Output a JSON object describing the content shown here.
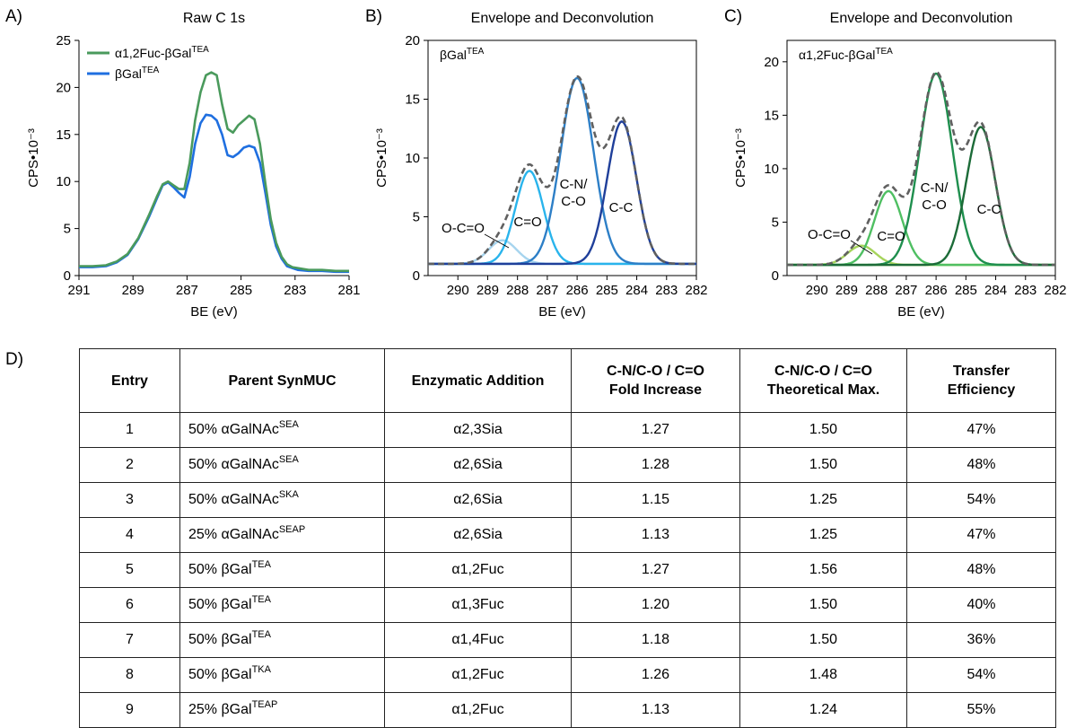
{
  "panels": {
    "a": {
      "letter": "A)"
    },
    "b": {
      "letter": "B)",
      "inset": {
        "base": "βGal",
        "sup": "TEA"
      }
    },
    "c": {
      "letter": "C)",
      "inset": {
        "base": "α1,2Fuc-βGal",
        "sup": "TEA"
      }
    },
    "d": {
      "letter": "D)"
    }
  },
  "colors": {
    "raw_fuc": "#4a9a5c",
    "raw_gal": "#1f6fe0",
    "b_components": [
      "#a6d4ee",
      "#29b4ec",
      "#2d7fc7",
      "#1f3f9a"
    ],
    "b_baseline": "#7ac6f0",
    "c_components": [
      "#a6d45c",
      "#4fbf62",
      "#1f8f4e",
      "#1c6b38"
    ],
    "c_baseline": "#8cc84b",
    "envelope": "#606060"
  },
  "chart_data": [
    {
      "type": "line",
      "title": "Raw C 1s",
      "xlabel": "BE (eV)",
      "ylabel": "CPS•10⁻³",
      "xlim": [
        291,
        281
      ],
      "ylim": [
        0,
        25
      ],
      "xticks": [
        "291",
        "289",
        "287",
        "285",
        "283",
        "281"
      ],
      "yticks": [
        "0",
        "5",
        "10",
        "15",
        "20",
        "25"
      ],
      "legend_position": "top-left",
      "series": [
        {
          "name": "α1,2Fuc-βGal",
          "name_sup": "TEA",
          "x": [
            291,
            290.5,
            290,
            289.6,
            289.2,
            288.8,
            288.4,
            288.1,
            287.9,
            287.7,
            287.5,
            287.3,
            287.1,
            286.9,
            286.7,
            286.5,
            286.3,
            286.1,
            285.9,
            285.7,
            285.5,
            285.3,
            285.1,
            284.9,
            284.7,
            284.5,
            284.3,
            284.1,
            283.9,
            283.7,
            283.5,
            283.3,
            283.1,
            282.9,
            282.5,
            282,
            281.5,
            281
          ],
          "y": [
            1.0,
            1.0,
            1.1,
            1.5,
            2.3,
            4.0,
            6.5,
            8.5,
            9.7,
            10.0,
            9.6,
            9.2,
            9.2,
            12.0,
            16.5,
            19.5,
            21.3,
            21.6,
            21.3,
            18.2,
            15.6,
            15.2,
            16.0,
            16.5,
            17.0,
            16.6,
            14.0,
            9.8,
            6.0,
            3.5,
            2.0,
            1.2,
            0.9,
            0.8,
            0.6,
            0.6,
            0.5,
            0.5
          ]
        },
        {
          "name": "βGal",
          "name_sup": "TEA",
          "x": [
            291,
            290.5,
            290,
            289.6,
            289.2,
            288.8,
            288.4,
            288.1,
            287.9,
            287.7,
            287.5,
            287.3,
            287.1,
            286.9,
            286.7,
            286.5,
            286.3,
            286.1,
            285.9,
            285.7,
            285.5,
            285.3,
            285.1,
            284.9,
            284.7,
            284.5,
            284.3,
            284.1,
            283.9,
            283.7,
            283.5,
            283.3,
            283.1,
            282.9,
            282.5,
            282,
            281.5,
            281
          ],
          "y": [
            0.9,
            0.9,
            1.0,
            1.4,
            2.2,
            3.9,
            6.3,
            8.3,
            9.6,
            9.9,
            9.4,
            8.8,
            8.3,
            10.5,
            14.0,
            16.2,
            17.1,
            17.0,
            16.5,
            15.0,
            12.8,
            12.6,
            13.0,
            13.6,
            13.8,
            13.6,
            12.0,
            8.8,
            5.4,
            3.1,
            1.8,
            1.0,
            0.8,
            0.6,
            0.5,
            0.5,
            0.4,
            0.4
          ]
        }
      ]
    },
    {
      "type": "line",
      "title": "Envelope and Deconvolution",
      "xlabel": "BE (eV)",
      "ylabel": "CPS•10⁻³",
      "xlim": [
        291,
        282
      ],
      "ylim": [
        0,
        20
      ],
      "xticks": [
        "290",
        "289",
        "288",
        "287",
        "286",
        "285",
        "284",
        "283",
        "282"
      ],
      "yticks": [
        "0",
        "5",
        "10",
        "15",
        "20"
      ],
      "baseline": 1.0,
      "components": [
        {
          "label": "O-C=O",
          "center": 288.5,
          "height": 2.0,
          "fwhm": 1.1
        },
        {
          "label": "C=O",
          "center": 287.6,
          "height": 7.9,
          "fwhm": 1.1
        },
        {
          "label": "C-N/ C-O",
          "center": 286.0,
          "height": 15.8,
          "fwhm": 1.3
        },
        {
          "label": "C-C",
          "center": 284.5,
          "height": 12.1,
          "fwhm": 1.15
        }
      ]
    },
    {
      "type": "line",
      "title": "Envelope and Deconvolution",
      "xlabel": "BE (eV)",
      "ylabel": "CPS•10⁻³",
      "xlim": [
        291,
        282
      ],
      "ylim": [
        0,
        22
      ],
      "xticks": [
        "290",
        "289",
        "288",
        "287",
        "286",
        "285",
        "284",
        "283",
        "282"
      ],
      "yticks": [
        "0",
        "5",
        "10",
        "15",
        "20"
      ],
      "baseline": 1.0,
      "components": [
        {
          "label": "O-C=O",
          "center": 288.5,
          "height": 1.8,
          "fwhm": 1.1
        },
        {
          "label": "C=O",
          "center": 287.6,
          "height": 6.9,
          "fwhm": 1.1
        },
        {
          "label": "C-N/ C-O",
          "center": 286.0,
          "height": 17.9,
          "fwhm": 1.3
        },
        {
          "label": "C-C",
          "center": 284.5,
          "height": 12.9,
          "fwhm": 1.15
        }
      ]
    },
    {
      "type": "table",
      "columns": [
        [
          "Entry"
        ],
        [
          "Parent SynMUC"
        ],
        [
          "Enzymatic Addition"
        ],
        [
          "C-N/C-O / C=O",
          "Fold Increase"
        ],
        [
          "C-N/C-O / C=O",
          "Theoretical Max."
        ],
        [
          "Transfer",
          "Efficiency"
        ]
      ],
      "rows": [
        {
          "entry": "1",
          "parent": "50% αGalNAc",
          "parent_sup": "SEA",
          "addition": "α2,3Sia",
          "fold": "1.27",
          "max": "1.50",
          "eff": "47%"
        },
        {
          "entry": "2",
          "parent": "50% αGalNAc",
          "parent_sup": "SEA",
          "addition": "α2,6Sia",
          "fold": "1.28",
          "max": "1.50",
          "eff": "48%"
        },
        {
          "entry": "3",
          "parent": "50% αGalNAc",
          "parent_sup": "SKA",
          "addition": "α2,6Sia",
          "fold": "1.15",
          "max": "1.25",
          "eff": "54%"
        },
        {
          "entry": "4",
          "parent": "25% αGalNAc",
          "parent_sup": "SEAP",
          "addition": "α2,6Sia",
          "fold": "1.13",
          "max": "1.25",
          "eff": "47%"
        },
        {
          "entry": "5",
          "parent": "50% βGal",
          "parent_sup": "TEA",
          "addition": "α1,2Fuc",
          "fold": "1.27",
          "max": "1.56",
          "eff": "48%"
        },
        {
          "entry": "6",
          "parent": "50% βGal",
          "parent_sup": "TEA",
          "addition": "α1,3Fuc",
          "fold": "1.20",
          "max": "1.50",
          "eff": "40%"
        },
        {
          "entry": "7",
          "parent": "50% βGal",
          "parent_sup": "TEA",
          "addition": "α1,4Fuc",
          "fold": "1.18",
          "max": "1.50",
          "eff": "36%"
        },
        {
          "entry": "8",
          "parent": "50% βGal",
          "parent_sup": "TKA",
          "addition": "α1,2Fuc",
          "fold": "1.26",
          "max": "1.48",
          "eff": "54%"
        },
        {
          "entry": "9",
          "parent": "25% βGal",
          "parent_sup": "TEAP",
          "addition": "α1,2Fuc",
          "fold": "1.13",
          "max": "1.24",
          "eff": "55%"
        }
      ]
    }
  ]
}
